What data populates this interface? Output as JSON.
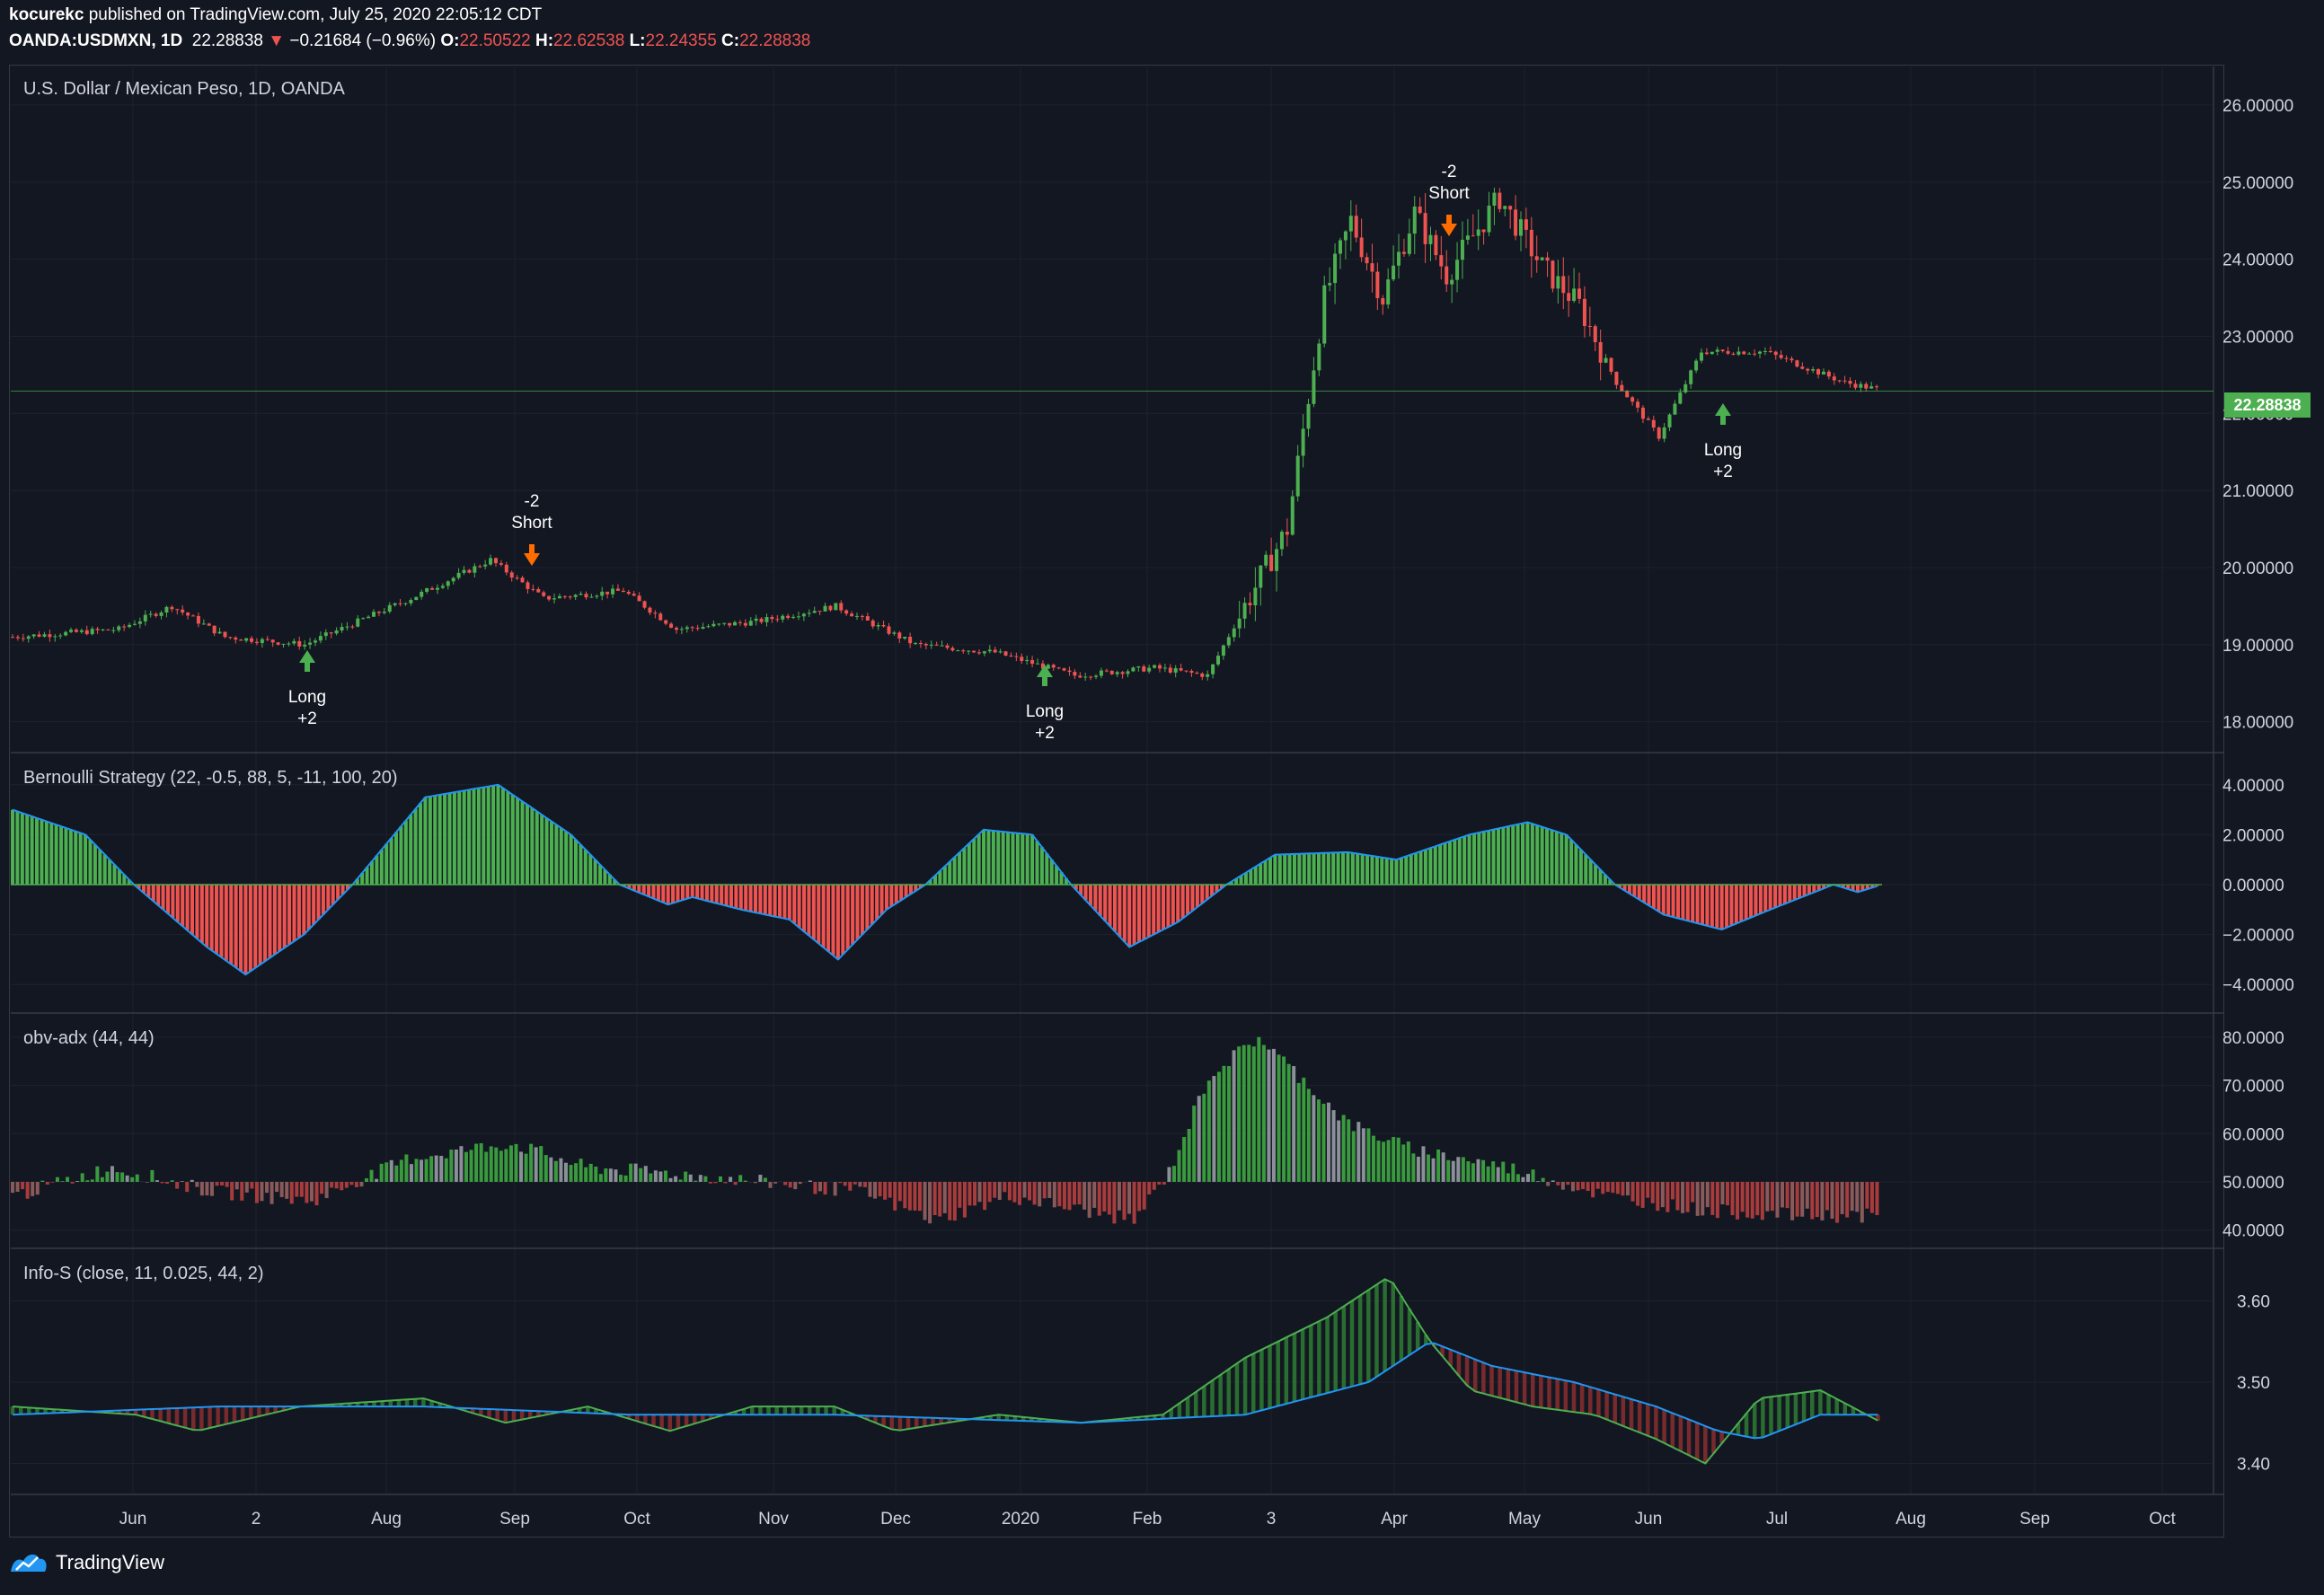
{
  "header": {
    "publisher": "kocurekc",
    "published_text": "published on TradingView.com, July 25, 2020 22:05:12 CDT",
    "symbol": "OANDA:USDMXN, 1D",
    "last": "22.28838",
    "change": "−0.21684 (−0.96%)",
    "o_label": "O:",
    "o_value": "22.50522",
    "h_label": "H:",
    "h_value": "22.62538",
    "l_label": "L:",
    "l_value": "22.24355",
    "c_label": "C:",
    "c_value": "22.28838"
  },
  "panes": {
    "price_title": "U.S. Dollar / Mexican Peso, 1D, OANDA",
    "bernoulli_title": "Bernoulli Strategy (22, -0.5, 88, 5, -11, 100, 20)",
    "obv_title": "obv-adx (44, 44)",
    "info_title": "Info-S (close, 11, 0.025, 44, 2)"
  },
  "current_price_tag": "22.28838",
  "colors": {
    "background": "#131722",
    "grid": "#1e222d",
    "up": "#4caf50",
    "down": "#ef5350",
    "line_blue": "#2196f3",
    "orange": "#ff6d00"
  },
  "signals": [
    {
      "label_top": "Long",
      "label_bottom": "+2",
      "type": "long"
    },
    {
      "label_top": "-2",
      "label_bottom": "Short",
      "type": "short"
    },
    {
      "label_top": "Long",
      "label_bottom": "+2",
      "type": "long"
    },
    {
      "label_top": "-2",
      "label_bottom": "Short",
      "type": "short"
    },
    {
      "label_top": "Long",
      "label_bottom": "+2",
      "type": "long"
    }
  ],
  "x_axis_labels": [
    "Jun",
    "2",
    "Aug",
    "Sep",
    "Oct",
    "Nov",
    "Dec",
    "2020",
    "Feb",
    "3",
    "Apr",
    "May",
    "Jun",
    "Jul",
    "Aug",
    "Sep",
    "Oct"
  ],
  "price_axis_labels": [
    "26.00000",
    "25.00000",
    "24.00000",
    "23.00000",
    "22.00000",
    "21.00000",
    "20.00000",
    "19.00000",
    "18.00000"
  ],
  "bernoulli_axis_labels": [
    "4.00000",
    "2.00000",
    "0.00000",
    "−2.00000",
    "−4.00000"
  ],
  "obv_axis_labels": [
    "80.0000",
    "70.0000",
    "60.0000",
    "50.0000",
    "40.0000"
  ],
  "info_axis_labels": [
    "3.60",
    "3.50",
    "3.40"
  ],
  "footer_brand": "TradingView",
  "chart_data": {
    "type": "candlestick",
    "title": "U.S. Dollar / Mexican Peso, 1D, OANDA",
    "x_range": [
      "2019-05",
      "2020-10"
    ],
    "price_ylim": [
      18.0,
      26.0
    ],
    "price_key_points": [
      {
        "date": "2019-05",
        "close": 19.1
      },
      {
        "date": "2019-06",
        "close": 19.2
      },
      {
        "date": "2019-07",
        "close": 19.0
      },
      {
        "date": "2019-08",
        "close": 19.8
      },
      {
        "date": "2019-09",
        "close": 19.5
      },
      {
        "date": "2019-10",
        "close": 19.6
      },
      {
        "date": "2019-11",
        "close": 19.3
      },
      {
        "date": "2019-12",
        "close": 19.0
      },
      {
        "date": "2020-01",
        "close": 18.8
      },
      {
        "date": "2020-02",
        "close": 18.6
      },
      {
        "date": "2020-03",
        "close": 24.0
      },
      {
        "date": "2020-04",
        "close": 24.5
      },
      {
        "date": "2020-05",
        "close": 23.5
      },
      {
        "date": "2020-06",
        "close": 21.8
      },
      {
        "date": "2020-07",
        "close": 22.3
      }
    ],
    "last_price": 22.28838,
    "bernoulli_ylim": [
      -4.0,
      4.0
    ],
    "obv_ylim": [
      40,
      80
    ],
    "info_ylim": [
      3.38,
      3.65
    ]
  }
}
